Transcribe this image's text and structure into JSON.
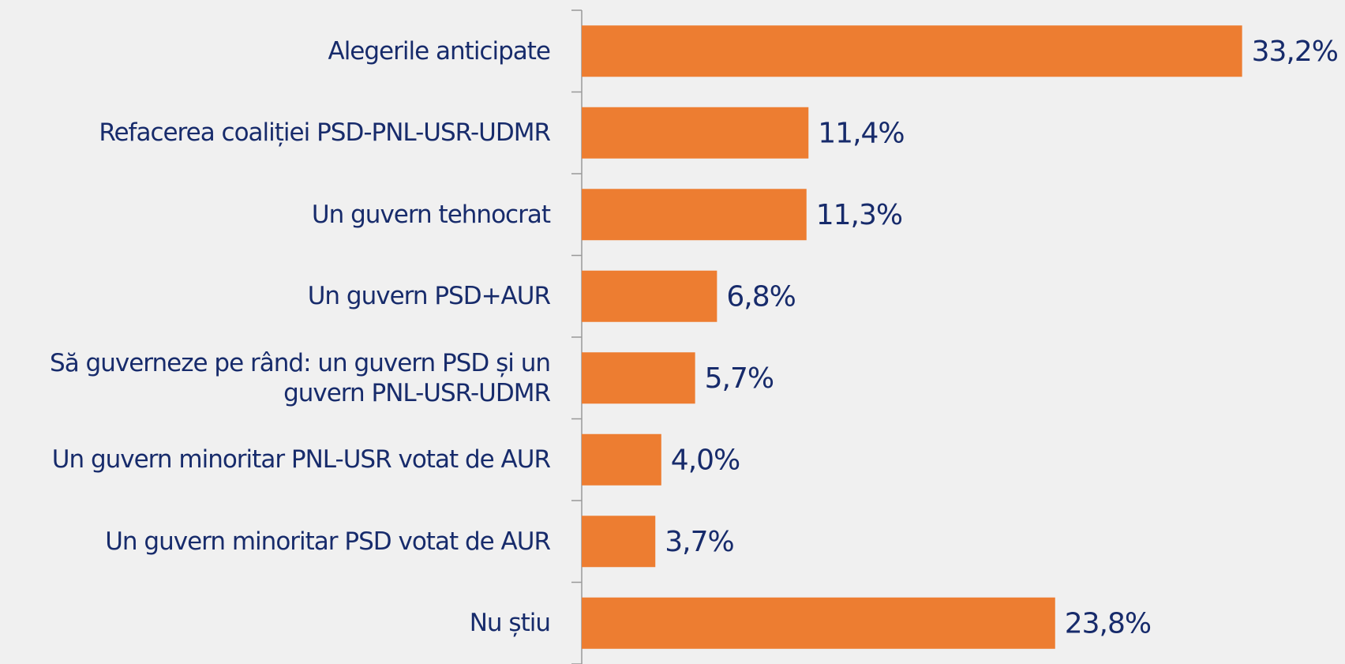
{
  "chart_data": {
    "type": "bar",
    "orientation": "horizontal",
    "categories": [
      "Alegerile anticipate",
      "Refacerea coaliției PSD-PNL-USR-UDMR",
      "Un guvern tehnocrat",
      "Un guvern PSD+AUR",
      "Să guverneze pe rând: un guvern PSD și un guvern PNL-USR-UDMR",
      "Un guvern minoritar PNL-USR votat de AUR",
      "Un guvern minoritar PSD votat de AUR",
      "Nu știu"
    ],
    "values": [
      33.2,
      11.4,
      11.3,
      6.8,
      5.7,
      4.0,
      3.7,
      23.8
    ],
    "value_labels": [
      "33,2%",
      "11,4%",
      "11,3%",
      "6,8%",
      "5,7%",
      "4,0%",
      "3,7%",
      "23,8%"
    ],
    "color": "#ed7d31"
  }
}
